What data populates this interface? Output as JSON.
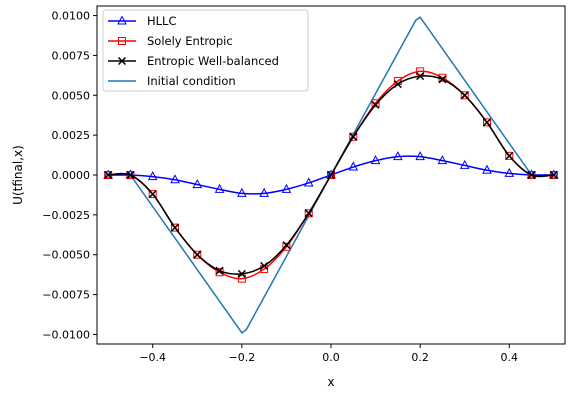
{
  "chart_data": {
    "type": "line",
    "title": "",
    "xlabel": "x",
    "ylabel": "U(tfinal,x)",
    "xlim": [
      -0.525,
      0.525
    ],
    "ylim": [
      -0.0106,
      0.0106
    ],
    "x_ticks": [
      -0.4,
      -0.2,
      0.0,
      0.2,
      0.4
    ],
    "x_tick_labels": [
      "−0.4",
      "−0.2",
      "0.0",
      "0.2",
      "0.4"
    ],
    "y_ticks": [
      -0.01,
      -0.0075,
      -0.005,
      -0.0025,
      0.0,
      0.0025,
      0.005,
      0.0075,
      0.01
    ],
    "y_tick_labels": [
      "−0.0100",
      "−0.0075",
      "−0.0050",
      "−0.0025",
      "0.0000",
      "0.0025",
      "0.0050",
      "0.0075",
      "0.0100"
    ],
    "grid": false,
    "legend_position": "top-left",
    "series": [
      {
        "name": "HLLC",
        "color": "#0000ff",
        "marker": "triangle-open",
        "x": [
          -0.5,
          -0.45,
          -0.4,
          -0.35,
          -0.3,
          -0.25,
          -0.2,
          -0.15,
          -0.1,
          -0.05,
          0.0,
          0.05,
          0.1,
          0.15,
          0.2,
          0.25,
          0.3,
          0.35,
          0.4,
          0.45,
          0.5
        ],
        "y": [
          0.0,
          0.0,
          -0.0001,
          -0.0003,
          -0.0006,
          -0.0009,
          -0.00115,
          -0.00115,
          -0.0009,
          -0.0005,
          0.0,
          0.0005,
          0.0009,
          0.00115,
          0.00115,
          0.0009,
          0.0006,
          0.0003,
          0.0001,
          0.0,
          0.0
        ]
      },
      {
        "name": "Solely Entropic",
        "color": "#ff0000",
        "marker": "square-open",
        "x": [
          -0.5,
          -0.45,
          -0.4,
          -0.35,
          -0.3,
          -0.25,
          -0.2,
          -0.15,
          -0.1,
          -0.05,
          0.0,
          0.05,
          0.1,
          0.15,
          0.2,
          0.25,
          0.3,
          0.35,
          0.4,
          0.45,
          0.5
        ],
        "y": [
          0.0,
          0.0,
          -0.0012,
          -0.0033,
          -0.005,
          -0.0061,
          -0.0065,
          -0.0059,
          -0.0045,
          -0.0024,
          0.0,
          0.0024,
          0.0045,
          0.0059,
          0.0065,
          0.0061,
          0.005,
          0.0033,
          0.0012,
          0.0,
          0.0
        ]
      },
      {
        "name": "Entropic Well-balanced",
        "color": "#000000",
        "marker": "x",
        "x": [
          -0.5,
          -0.45,
          -0.4,
          -0.35,
          -0.3,
          -0.25,
          -0.2,
          -0.15,
          -0.1,
          -0.05,
          0.0,
          0.05,
          0.1,
          0.15,
          0.2,
          0.25,
          0.3,
          0.35,
          0.4,
          0.45,
          0.5
        ],
        "y": [
          0.0,
          0.0,
          -0.0012,
          -0.0033,
          -0.005,
          -0.006,
          -0.0062,
          -0.0057,
          -0.0044,
          -0.0024,
          0.0,
          0.0024,
          0.0044,
          0.0057,
          0.0062,
          0.006,
          0.005,
          0.0033,
          0.0012,
          0.0,
          0.0
        ]
      },
      {
        "name": "Initial condition",
        "color": "#1f77b4",
        "marker": "none",
        "x": [
          -0.5,
          -0.45,
          -0.2,
          -0.19,
          0.0,
          0.19,
          0.2,
          0.45,
          0.5
        ],
        "y": [
          0.0,
          0.0,
          -0.0099,
          -0.0097,
          0.0,
          0.0097,
          0.0099,
          0.0,
          0.0
        ]
      }
    ]
  }
}
